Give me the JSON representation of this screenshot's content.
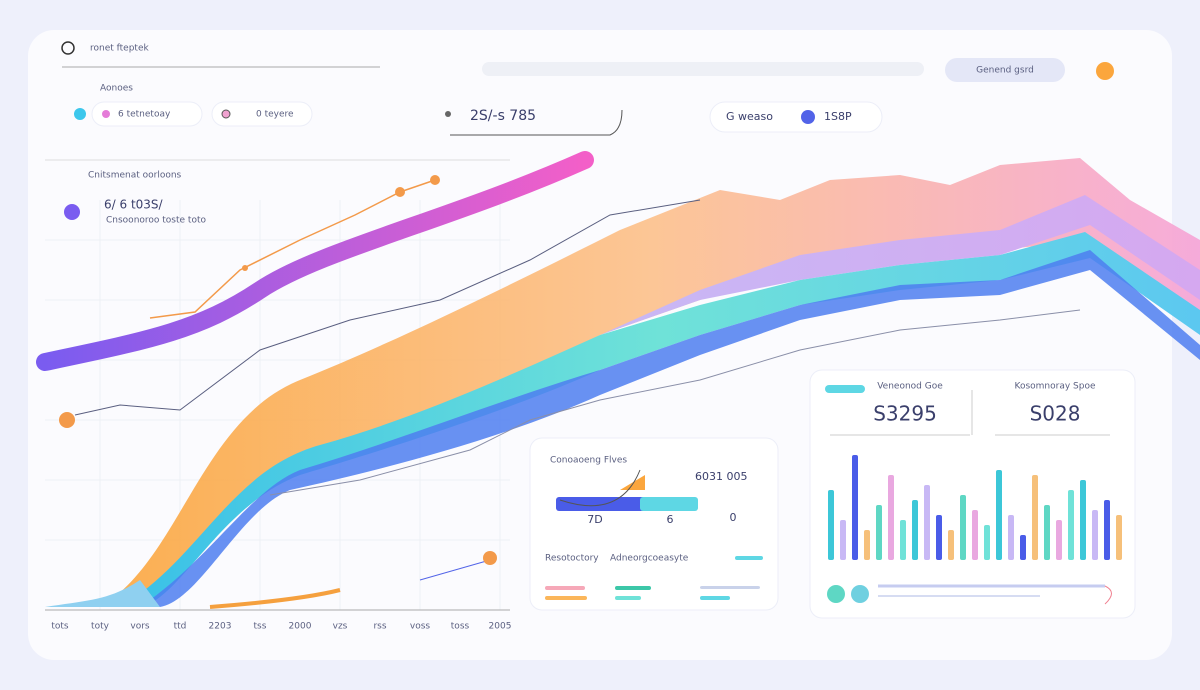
{
  "header": {
    "title": "ronet fteptek",
    "search": "Genend gsrd"
  },
  "toolbar": {
    "label": "Aonoes",
    "items": [
      "6 tetnetoay",
      "0 teyere"
    ],
    "stat": "2S/-s 785",
    "toggle": "G weaso",
    "toggle_value": "1S8P"
  },
  "chart": {
    "caption": "Cnitsmenat oorloons",
    "value": "6/ 6 t03S/",
    "subtitle": "Cnsoonoroo toste toto",
    "x_labels": [
      "tots",
      "toty",
      "vors",
      "ttd",
      "2203",
      "tss",
      "2000",
      "vzs",
      "rss",
      "voss",
      "toss",
      "2005"
    ]
  },
  "card_left": {
    "title": "Conoaoeng Flves",
    "value": "6031 005",
    "gauge_labels": [
      "7D",
      "6",
      "0"
    ],
    "legend": [
      "Resotoctory",
      "Adneorgcoeasyte"
    ]
  },
  "card_right": {
    "labels": [
      "Veneonod Goe",
      "Kosomnoray Spoe"
    ],
    "values": [
      "S3295",
      "S028"
    ]
  }
}
